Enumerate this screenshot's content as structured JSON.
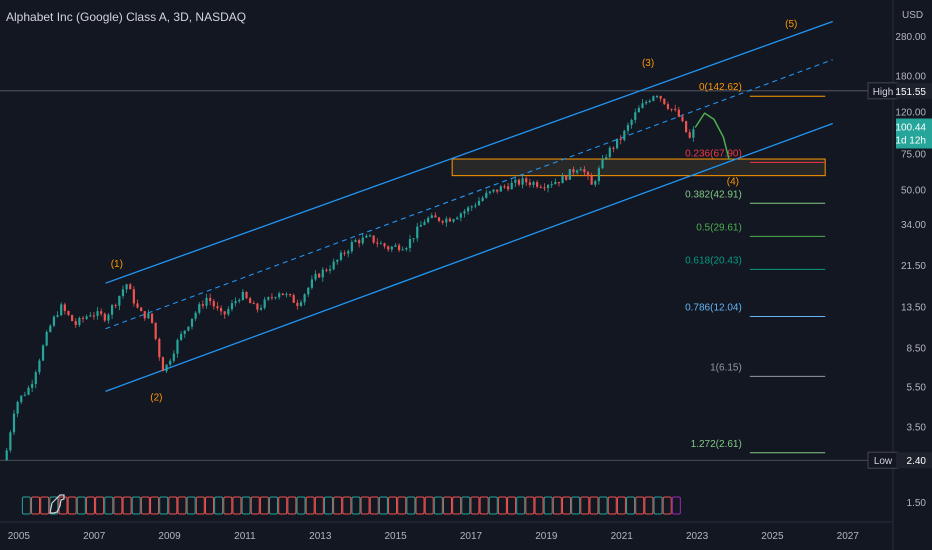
{
  "title": "Alphabet Inc (Google) Class A, 3D, NASDAQ",
  "currency": "USD",
  "colors": {
    "background": "#131722",
    "up": "#26a69a",
    "down": "#ef5350",
    "channel": "#2196f3",
    "wave_label": "#ff9800",
    "projection": "#4caf50",
    "zone": "#ff9800"
  },
  "chart_data": {
    "type": "candlestick",
    "symbol": "Alphabet Inc (Google) Class A",
    "interval": "3D",
    "exchange": "NASDAQ",
    "y_scale": "log",
    "ylim": [
      1.2,
      420
    ],
    "xlim": [
      2004.5,
      2028.2
    ],
    "y_ticks": [
      "280.00",
      "180.00",
      "120.00",
      "75.00",
      "50.00",
      "34.00",
      "21.50",
      "13.50",
      "8.50",
      "5.50",
      "3.50",
      "1.50"
    ],
    "x_ticks": [
      "2005",
      "2007",
      "2009",
      "2011",
      "2013",
      "2015",
      "2017",
      "2019",
      "2021",
      "2023",
      "2025",
      "2027"
    ],
    "price_path": [
      [
        2004.63,
        2.4
      ],
      [
        2004.9,
        4.5
      ],
      [
        2005.3,
        5.5
      ],
      [
        2005.8,
        10.5
      ],
      [
        2006.1,
        13.5
      ],
      [
        2006.5,
        11.0
      ],
      [
        2006.9,
        12.5
      ],
      [
        2007.3,
        12.0
      ],
      [
        2007.6,
        14.5
      ],
      [
        2007.85,
        17.5
      ],
      [
        2008.2,
        12.5
      ],
      [
        2008.5,
        12.0
      ],
      [
        2008.75,
        7.5
      ],
      [
        2008.85,
        6.5
      ],
      [
        2009.2,
        9.0
      ],
      [
        2009.6,
        12.0
      ],
      [
        2010.0,
        15.0
      ],
      [
        2010.4,
        12.0
      ],
      [
        2010.9,
        15.5
      ],
      [
        2011.3,
        13.0
      ],
      [
        2011.9,
        16.0
      ],
      [
        2012.4,
        14.0
      ],
      [
        2012.9,
        19.0
      ],
      [
        2013.4,
        22.0
      ],
      [
        2013.9,
        28.0
      ],
      [
        2014.3,
        29.0
      ],
      [
        2014.8,
        26.0
      ],
      [
        2015.3,
        27.0
      ],
      [
        2015.8,
        36.0
      ],
      [
        2016.4,
        36.0
      ],
      [
        2016.9,
        40.0
      ],
      [
        2017.4,
        47.0
      ],
      [
        2017.9,
        52.0
      ],
      [
        2018.4,
        55.0
      ],
      [
        2018.9,
        53.0
      ],
      [
        2019.4,
        56.0
      ],
      [
        2019.9,
        66.0
      ],
      [
        2020.2,
        52.0
      ],
      [
        2020.6,
        75.0
      ],
      [
        2021.0,
        90.0
      ],
      [
        2021.4,
        120.0
      ],
      [
        2021.9,
        150.0
      ],
      [
        2022.2,
        130.0
      ],
      [
        2022.5,
        115.0
      ],
      [
        2022.8,
        88.0
      ],
      [
        2022.95,
        100.0
      ]
    ],
    "channel": {
      "upper": [
        [
          2007.3,
          17.5
        ],
        [
          2026.6,
          330
        ]
      ],
      "lower": [
        [
          2007.3,
          5.2
        ],
        [
          2026.6,
          105
        ]
      ],
      "median": [
        [
          2007.3,
          10.5
        ],
        [
          2026.6,
          215
        ]
      ]
    },
    "waves": [
      {
        "label": "(1)",
        "x": 2007.6,
        "y": 21.0
      },
      {
        "label": "(2)",
        "x": 2008.65,
        "y": 4.7
      },
      {
        "label": "(3)",
        "x": 2021.7,
        "y": 200
      },
      {
        "label": "(4)",
        "x": 2023.95,
        "y": 53
      },
      {
        "label": "(5)",
        "x": 2025.5,
        "y": 310
      }
    ],
    "projection_path": [
      [
        2022.95,
        100.44
      ],
      [
        2023.2,
        118
      ],
      [
        2023.45,
        110
      ],
      [
        2023.7,
        90
      ],
      [
        2023.85,
        70
      ]
    ],
    "support_zone": {
      "x0": 2016.5,
      "x1": 2026.4,
      "y_top": 70.5,
      "y_bottom": 58.5
    },
    "fib_levels": [
      {
        "label": "0(142.62)",
        "value": 142.62,
        "color": "#ff9800"
      },
      {
        "label": "0.236(67.90)",
        "value": 67.9,
        "color": "#f23645"
      },
      {
        "label": "0.382(42.91)",
        "value": 42.91,
        "color": "#81c784"
      },
      {
        "label": "0.5(29.61)",
        "value": 29.61,
        "color": "#4caf50"
      },
      {
        "label": "0.618(20.43)",
        "value": 20.43,
        "color": "#089981"
      },
      {
        "label": "0.786(12.04)",
        "value": 12.04,
        "color": "#64b5f6"
      },
      {
        "label": "1(6.15)",
        "value": 6.15,
        "color": "#9598a1"
      },
      {
        "label": "1.272(2.61)",
        "value": 2.61,
        "color": "#81c784"
      }
    ],
    "fib_line_x": [
      2024.4,
      2026.4
    ],
    "price_tags": [
      {
        "label": "High",
        "value": "151.55",
        "y": 151.55
      },
      {
        "label": "Low",
        "value": "2.40",
        "y": 2.4
      }
    ],
    "current": {
      "price": "100.44",
      "countdown": "1d 12h",
      "y": 100.44
    },
    "events_count": 72
  }
}
